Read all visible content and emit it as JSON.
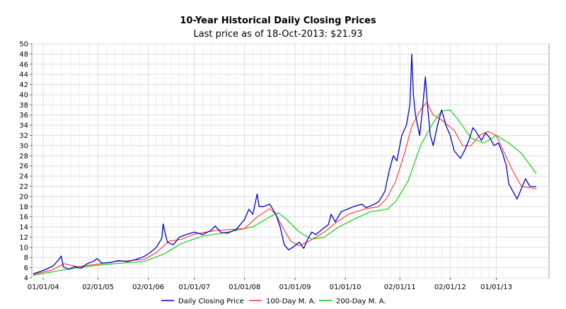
{
  "chart_data": {
    "type": "line",
    "title": "10-Year Historical Daily Closing Prices",
    "subtitle": "Last price as of 18-Oct-2013: $21.93",
    "xlabel": "",
    "ylabel": "",
    "ylim": [
      4,
      50
    ],
    "yticks": [
      4,
      6,
      8,
      10,
      12,
      14,
      16,
      18,
      20,
      22,
      24,
      26,
      28,
      30,
      32,
      34,
      36,
      38,
      40,
      42,
      44,
      46,
      48,
      50
    ],
    "xlim": [
      "2003-10-20",
      "2013-10-18"
    ],
    "xticks": [
      {
        "date": "2004-01-01",
        "label": "01/01/04"
      },
      {
        "date": "2005-02-01",
        "label": "02/01/05"
      },
      {
        "date": "2006-02-01",
        "label": "02/01/06"
      },
      {
        "date": "2007-01-01",
        "label": "01/01/07"
      },
      {
        "date": "2008-01-01",
        "label": "01/01/08"
      },
      {
        "date": "2009-01-01",
        "label": "01/01/09"
      },
      {
        "date": "2010-01-01",
        "label": "01/01/10"
      },
      {
        "date": "2011-02-01",
        "label": "02/01/11"
      },
      {
        "date": "2012-02-01",
        "label": "02/01/12"
      },
      {
        "date": "2013-01-01",
        "label": "01/01/13"
      }
    ],
    "grid": true,
    "legend_position": "bottom",
    "series": [
      {
        "name": "Daily Closing Price",
        "color": "#0000cc",
        "points": [
          [
            "2003-10-20",
            4.8
          ],
          [
            "2003-12-15",
            5.3
          ],
          [
            "2004-02-01",
            5.8
          ],
          [
            "2004-03-15",
            6.4
          ],
          [
            "2004-04-20",
            7.5
          ],
          [
            "2004-05-10",
            8.3
          ],
          [
            "2004-05-25",
            6.2
          ],
          [
            "2004-07-01",
            5.7
          ],
          [
            "2004-08-15",
            6.2
          ],
          [
            "2004-10-01",
            5.9
          ],
          [
            "2004-11-15",
            6.8
          ],
          [
            "2005-01-01",
            7.3
          ],
          [
            "2005-01-25",
            7.8
          ],
          [
            "2005-03-01",
            6.9
          ],
          [
            "2005-05-01",
            7.0
          ],
          [
            "2005-07-01",
            7.4
          ],
          [
            "2005-09-01",
            7.2
          ],
          [
            "2005-11-01",
            7.6
          ],
          [
            "2006-01-01",
            8.2
          ],
          [
            "2006-02-15",
            9.0
          ],
          [
            "2006-04-01",
            10.0
          ],
          [
            "2006-05-10",
            11.8
          ],
          [
            "2006-05-20",
            14.6
          ],
          [
            "2006-06-05",
            12.5
          ],
          [
            "2006-06-20",
            11.0
          ],
          [
            "2006-08-01",
            10.5
          ],
          [
            "2006-09-15",
            12.0
          ],
          [
            "2006-11-01",
            12.5
          ],
          [
            "2007-01-01",
            13.0
          ],
          [
            "2007-03-01",
            12.5
          ],
          [
            "2007-05-01",
            13.3
          ],
          [
            "2007-06-01",
            14.2
          ],
          [
            "2007-07-15",
            12.9
          ],
          [
            "2007-09-01",
            12.8
          ],
          [
            "2007-11-01",
            13.5
          ],
          [
            "2008-01-01",
            15.5
          ],
          [
            "2008-02-01",
            17.5
          ],
          [
            "2008-03-01",
            16.5
          ],
          [
            "2008-04-01",
            20.5
          ],
          [
            "2008-04-15",
            18.0
          ],
          [
            "2008-05-15",
            18.0
          ],
          [
            "2008-07-01",
            18.5
          ],
          [
            "2008-08-15",
            16.5
          ],
          [
            "2008-09-15",
            14.0
          ],
          [
            "2008-10-15",
            10.5
          ],
          [
            "2008-11-15",
            9.5
          ],
          [
            "2008-12-15",
            10.0
          ],
          [
            "2009-02-01",
            11.0
          ],
          [
            "2009-03-05",
            9.8
          ],
          [
            "2009-04-01",
            11.5
          ],
          [
            "2009-05-01",
            13.0
          ],
          [
            "2009-06-01",
            12.5
          ],
          [
            "2009-07-15",
            13.5
          ],
          [
            "2009-09-01",
            14.5
          ],
          [
            "2009-09-20",
            16.5
          ],
          [
            "2009-10-20",
            15.0
          ],
          [
            "2009-12-01",
            17.0
          ],
          [
            "2010-01-15",
            17.5
          ],
          [
            "2010-03-01",
            18.0
          ],
          [
            "2010-05-01",
            18.5
          ],
          [
            "2010-06-01",
            17.8
          ],
          [
            "2010-08-01",
            18.5
          ],
          [
            "2010-09-01",
            19.0
          ],
          [
            "2010-10-15",
            21.0
          ],
          [
            "2010-11-15",
            25.0
          ],
          [
            "2010-12-15",
            28.0
          ],
          [
            "2011-01-10",
            27.0
          ],
          [
            "2011-02-15",
            32.0
          ],
          [
            "2011-03-20",
            34.0
          ],
          [
            "2011-04-15",
            38.0
          ],
          [
            "2011-04-28",
            48.0
          ],
          [
            "2011-05-10",
            40.0
          ],
          [
            "2011-05-25",
            36.0
          ],
          [
            "2011-06-25",
            32.0
          ],
          [
            "2011-07-15",
            37.0
          ],
          [
            "2011-08-05",
            43.5
          ],
          [
            "2011-08-20",
            38.0
          ],
          [
            "2011-09-10",
            32.0
          ],
          [
            "2011-10-01",
            30.0
          ],
          [
            "2011-11-01",
            34.0
          ],
          [
            "2011-12-01",
            37.0
          ],
          [
            "2012-01-01",
            34.0
          ],
          [
            "2012-02-01",
            32.0
          ],
          [
            "2012-03-01",
            29.0
          ],
          [
            "2012-04-15",
            27.5
          ],
          [
            "2012-05-15",
            29.0
          ],
          [
            "2012-06-15",
            31.0
          ],
          [
            "2012-07-15",
            33.5
          ],
          [
            "2012-08-01",
            33.0
          ],
          [
            "2012-09-15",
            31.0
          ],
          [
            "2012-10-15",
            32.5
          ],
          [
            "2012-11-15",
            31.5
          ],
          [
            "2012-12-15",
            30.0
          ],
          [
            "2013-01-15",
            30.5
          ],
          [
            "2013-02-15",
            28.5
          ],
          [
            "2013-03-15",
            26.0
          ],
          [
            "2013-04-01",
            22.5
          ],
          [
            "2013-05-01",
            21.0
          ],
          [
            "2013-06-01",
            19.5
          ],
          [
            "2013-07-01",
            21.5
          ],
          [
            "2013-08-01",
            23.5
          ],
          [
            "2013-09-01",
            22.0
          ],
          [
            "2013-10-18",
            21.93
          ]
        ]
      },
      {
        "name": "100-Day M. A.",
        "color": "#ff3333",
        "points": [
          [
            "2003-10-20",
            4.7
          ],
          [
            "2004-03-01",
            5.5
          ],
          [
            "2004-06-01",
            6.8
          ],
          [
            "2004-09-01",
            6.2
          ],
          [
            "2005-01-01",
            6.6
          ],
          [
            "2005-06-01",
            7.2
          ],
          [
            "2006-01-01",
            7.6
          ],
          [
            "2006-04-01",
            9.0
          ],
          [
            "2006-07-01",
            11.2
          ],
          [
            "2006-10-01",
            11.6
          ],
          [
            "2007-01-01",
            12.6
          ],
          [
            "2007-06-01",
            13.3
          ],
          [
            "2008-01-01",
            13.7
          ],
          [
            "2008-04-01",
            16.0
          ],
          [
            "2008-07-01",
            17.6
          ],
          [
            "2008-08-15",
            16.5
          ],
          [
            "2008-10-01",
            14.0
          ],
          [
            "2008-12-01",
            11.2
          ],
          [
            "2009-02-01",
            10.3
          ],
          [
            "2009-05-01",
            11.5
          ],
          [
            "2009-08-01",
            13.0
          ],
          [
            "2009-11-01",
            15.0
          ],
          [
            "2010-02-01",
            16.6
          ],
          [
            "2010-06-01",
            17.6
          ],
          [
            "2010-09-01",
            18.0
          ],
          [
            "2010-11-01",
            19.8
          ],
          [
            "2011-01-01",
            23.0
          ],
          [
            "2011-03-01",
            28.0
          ],
          [
            "2011-05-01",
            34.0
          ],
          [
            "2011-07-01",
            37.0
          ],
          [
            "2011-08-15",
            38.5
          ],
          [
            "2011-10-01",
            36.0
          ],
          [
            "2011-12-01",
            35.0
          ],
          [
            "2012-03-01",
            33.0
          ],
          [
            "2012-05-01",
            30.0
          ],
          [
            "2012-07-01",
            30.0
          ],
          [
            "2012-09-01",
            32.0
          ],
          [
            "2012-11-01",
            32.8
          ],
          [
            "2013-01-01",
            32.0
          ],
          [
            "2013-03-01",
            28.5
          ],
          [
            "2013-05-01",
            25.0
          ],
          [
            "2013-07-01",
            22.0
          ],
          [
            "2013-10-18",
            21.5
          ]
        ]
      },
      {
        "name": "200-Day M. A.",
        "color": "#00cc00",
        "points": [
          [
            "2003-10-20",
            4.5
          ],
          [
            "2004-06-01",
            5.6
          ],
          [
            "2005-01-01",
            6.4
          ],
          [
            "2005-06-01",
            6.8
          ],
          [
            "2006-01-01",
            7.2
          ],
          [
            "2006-06-01",
            8.8
          ],
          [
            "2006-10-01",
            10.8
          ],
          [
            "2007-03-01",
            12.2
          ],
          [
            "2007-09-01",
            13.0
          ],
          [
            "2008-03-01",
            14.0
          ],
          [
            "2008-07-01",
            16.0
          ],
          [
            "2008-09-01",
            16.8
          ],
          [
            "2008-11-01",
            15.5
          ],
          [
            "2009-02-01",
            13.0
          ],
          [
            "2009-05-01",
            11.6
          ],
          [
            "2009-08-01",
            12.0
          ],
          [
            "2009-11-01",
            13.8
          ],
          [
            "2010-03-01",
            15.5
          ],
          [
            "2010-07-01",
            17.0
          ],
          [
            "2010-11-01",
            17.5
          ],
          [
            "2011-01-01",
            19.0
          ],
          [
            "2011-04-01",
            23.0
          ],
          [
            "2011-07-01",
            30.0
          ],
          [
            "2011-10-01",
            34.5
          ],
          [
            "2011-12-01",
            36.8
          ],
          [
            "2012-02-01",
            37.0
          ],
          [
            "2012-04-01",
            35.0
          ],
          [
            "2012-07-01",
            31.5
          ],
          [
            "2012-10-01",
            30.5
          ],
          [
            "2013-01-01",
            32.0
          ],
          [
            "2013-04-01",
            30.5
          ],
          [
            "2013-07-01",
            28.5
          ],
          [
            "2013-10-18",
            24.5
          ]
        ]
      }
    ]
  }
}
